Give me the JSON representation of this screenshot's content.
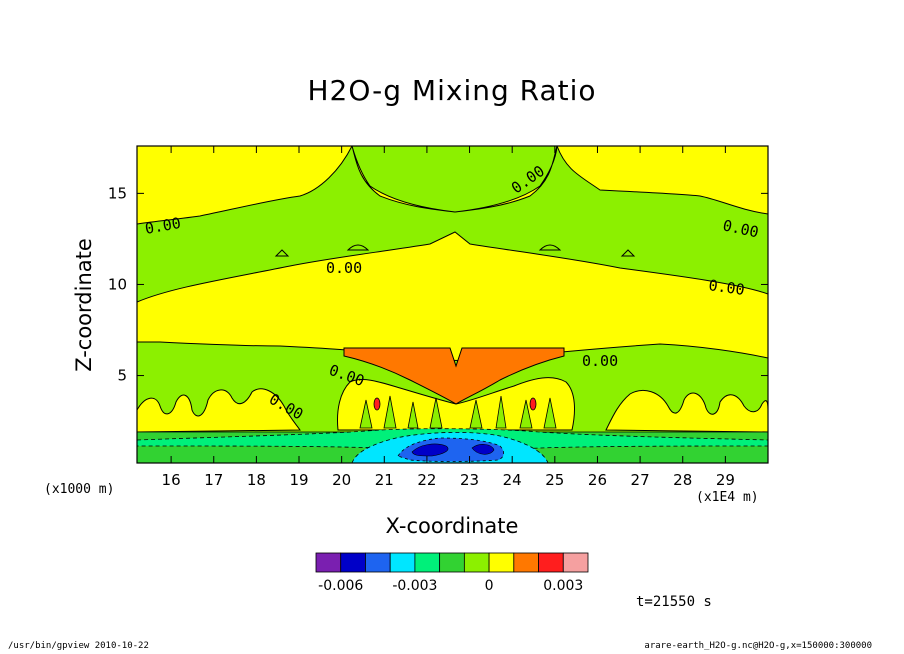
{
  "chart_data": {
    "type": "heatmap",
    "title": "H2O-g Mixing Ratio",
    "xlabel": "X-coordinate",
    "ylabel": "Z-coordinate",
    "x_unit": "(x1E4 m)",
    "y_unit": "(x1000 m)",
    "xlim": [
      15.2,
      30.0
    ],
    "ylim": [
      0.2,
      17.6
    ],
    "x_ticks": [
      16,
      17,
      18,
      19,
      20,
      21,
      22,
      23,
      24,
      25,
      26,
      27,
      28,
      29
    ],
    "y_ticks": [
      5,
      10,
      15
    ],
    "contour_labels": [
      "0.00",
      "0.00",
      "0.00",
      "0.00",
      "0.00",
      "0.00",
      "0.00",
      "0.00",
      "0.00"
    ],
    "colorbar": {
      "levels": [
        -0.007,
        -0.006,
        -0.005,
        -0.004,
        -0.003,
        -0.002,
        -0.001,
        0,
        0.001,
        0.002,
        0.003,
        0.004
      ],
      "colors": [
        "#7a1fb0",
        "#0000c8",
        "#1e64f0",
        "#00e6ff",
        "#00f07a",
        "#32d232",
        "#8cf000",
        "#ffff00",
        "#ff7800",
        "#ff1e1e",
        "#f5a0a0"
      ],
      "tick_labels": [
        "-0.006",
        "-0.003",
        "0",
        "0.003"
      ],
      "tick_values": [
        -0.006,
        -0.003,
        0,
        0.003
      ]
    },
    "annotation": "t=21550 s"
  },
  "footer": {
    "left": "/usr/bin/gpview  2010-10-22",
    "right": "arare-earth_H2O-g.nc@H2O-g,x=150000:300000"
  }
}
